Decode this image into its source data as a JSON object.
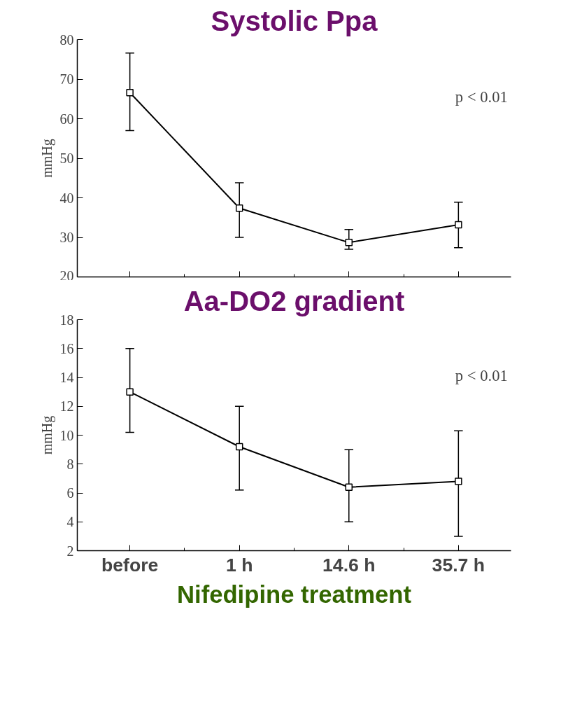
{
  "chart_data": [
    {
      "type": "line",
      "title": "Systolic Ppa",
      "ylabel": "mmHg",
      "categories": [
        null,
        null,
        null,
        null
      ],
      "series": [
        {
          "color": "#000000",
          "values": [
            66.6,
            37.4,
            28.7,
            33.2
          ],
          "errors": [
            [
              57,
              76.6
            ],
            [
              30,
              43.8
            ],
            [
              27,
              32
            ],
            [
              27.4,
              38.9
            ]
          ]
        }
      ],
      "ylim": [
        20,
        80
      ],
      "yticks": [
        20,
        30,
        40,
        50,
        60,
        70,
        80
      ],
      "tick_labels": "y",
      "marker": "square",
      "line_style": "solid",
      "grid": false,
      "annotations": [
        "p < 0.01"
      ]
    },
    {
      "type": "line",
      "title": "Aa-DO2 gradient",
      "ylabel": "mmHg",
      "xlabel": "Nifedipine treatment",
      "categories": [
        "before",
        "1 h",
        "14.6 h",
        "35.7 h"
      ],
      "series": [
        {
          "color": "#000000",
          "values": [
            13.0,
            9.2,
            6.4,
            6.8
          ],
          "errors": [
            [
              10.2,
              16.0
            ],
            [
              6.2,
              12.0
            ],
            [
              4.0,
              9.0
            ],
            [
              3.0,
              10.3
            ]
          ]
        }
      ],
      "ylim": [
        2,
        18
      ],
      "yticks": [
        2,
        4,
        6,
        8,
        10,
        12,
        14,
        16,
        18
      ],
      "marker": "square",
      "line_style": "solid",
      "grid": false,
      "annotations": [
        "p < 0.01"
      ]
    }
  ]
}
